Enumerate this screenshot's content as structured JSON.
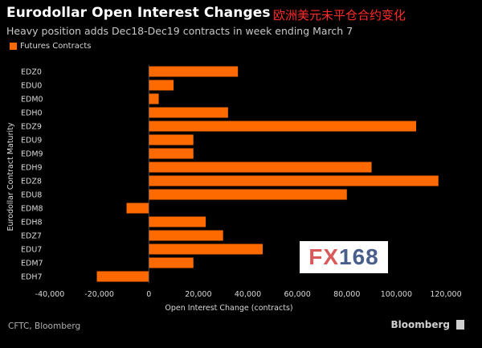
{
  "header": {
    "title": "Eurodollar Open Interest Changes",
    "title_cn": "欧洲美元未平仓合约变化",
    "subtitle": "Heavy position adds Dec18-Dec19 contracts in week ending March 7"
  },
  "legend": {
    "label": "Futures Contracts",
    "color": "#ff6a00"
  },
  "footer": {
    "source": "CFTC, Bloomberg",
    "brand": "Bloomberg"
  },
  "logo": {
    "fx": "FX",
    "num": "168"
  },
  "chart_data": {
    "type": "bar",
    "orientation": "horizontal",
    "title": "Eurodollar Open Interest Changes",
    "subtitle": "Heavy position adds Dec18-Dec19 contracts in week ending March 7",
    "xlabel": "Open Interest Change (contracts)",
    "ylabel": "Eurodollar Contract Maturity",
    "xlim": [
      -40000,
      120000
    ],
    "x_ticks": [
      -40000,
      -20000,
      0,
      20000,
      40000,
      60000,
      80000,
      100000,
      120000
    ],
    "x_tick_labels": [
      "-40,000",
      "-20,000",
      "0",
      "20,000",
      "40,000",
      "60,000",
      "80,000",
      "100,000",
      "120,000"
    ],
    "grid": false,
    "legend_position": "top-left",
    "categories": [
      "EDZ0",
      "EDU0",
      "EDM0",
      "EDH0",
      "EDZ9",
      "EDU9",
      "EDM9",
      "EDH9",
      "EDZ8",
      "EDU8",
      "EDM8",
      "EDH8",
      "EDZ7",
      "EDU7",
      "EDM7",
      "EDH7"
    ],
    "series": [
      {
        "name": "Futures Contracts",
        "color": "#ff6a00",
        "values": [
          36000,
          10000,
          4000,
          32000,
          108000,
          18000,
          18000,
          90000,
          117000,
          80000,
          -9000,
          23000,
          30000,
          46000,
          18000,
          -21000
        ]
      }
    ]
  }
}
